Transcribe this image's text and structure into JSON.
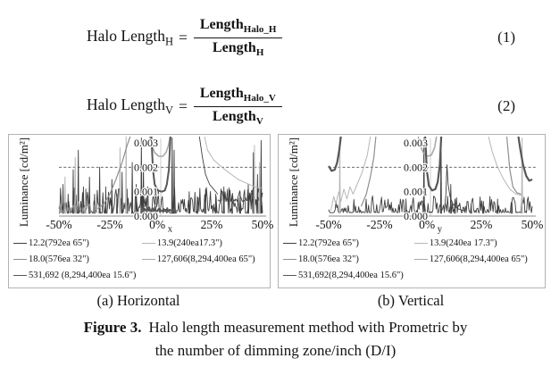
{
  "equations": [
    {
      "lhs": "Halo Length",
      "lhs_sub": "H",
      "equals": "=",
      "num": "Length",
      "num_sub": "Halo_H",
      "den": "Length",
      "den_sub": "H",
      "number": "(1)"
    },
    {
      "lhs": "Halo Length",
      "lhs_sub": "V",
      "equals": "=",
      "num": "Length",
      "num_sub": "Halo_V",
      "den": "Length",
      "den_sub": "V",
      "number": "(2)"
    }
  ],
  "figure_caption": {
    "label": "Figure 3.",
    "line1": "Halo length measurement method with Prometric by",
    "line2": "the number of dimming zone/inch (D/I)"
  },
  "chart_data": [
    {
      "type": "line",
      "title": "(a) Horizontal",
      "ylabel": "Luminance [cd/m²]",
      "axis_letter": "x",
      "xlim": [
        -50,
        50
      ],
      "ylim": [
        0,
        0.003
      ],
      "x_ticks": [
        "-50%",
        "-25%",
        "0%",
        "25%",
        "50%"
      ],
      "x_tick_values": [
        -50,
        -25,
        0,
        25,
        50
      ],
      "y_ticks": [
        "0.000",
        "0.001",
        "0.002",
        "0.003"
      ],
      "y_tick_values": [
        0,
        0.001,
        0.002,
        0.003
      ],
      "dashed_line_y": 0.002,
      "legend_position": "bottom",
      "grid": false,
      "series": [
        {
          "name": "12.2(792ea 65\")",
          "color": "#3f3f3f",
          "width": 0.9,
          "segments": [
            {
              "type": "noise",
              "from": -50,
              "to": 50,
              "base": 0.00012,
              "amp": 0.0011,
              "seed": 7
            },
            {
              "type": "spikes",
              "base": 0.0001,
              "list": [
                [
                  -48,
                  0.0013
                ],
                [
                  -45.5,
                  0.0009
                ],
                [
                  -43,
                  0.0019
                ],
                [
                  -40.5,
                  0.0027
                ],
                [
                  -38,
                  0.0012
                ],
                [
                  -35,
                  0.0016
                ],
                [
                  -32.5,
                  0.0009
                ],
                [
                  -30,
                  0.002
                ],
                [
                  -27,
                  0.0012
                ],
                [
                  -24,
                  0.0015
                ],
                [
                  -21.5,
                  0.0009
                ],
                [
                  -19,
                  0.0018
                ],
                [
                  -16.5,
                  0.0011
                ],
                [
                  -14,
                  0.0022
                ],
                [
                  -12,
                  0.0013
                ],
                [
                  -9.5,
                  0.0032
                ],
                [
                  -8.5,
                  0.0021
                ],
                [
                  5.6,
                  0.0032
                ],
                [
                  6.6,
                  0.0027
                ],
                [
                  14,
                  0.001
                ],
                [
                  18,
                  0.0008
                ],
                [
                  22,
                  0.0011
                ],
                [
                  27,
                  0.0009
                ],
                [
                  31,
                  0.0012
                ],
                [
                  35,
                  0.0008
                ],
                [
                  39,
                  0.001
                ],
                [
                  43,
                  0.0013
                ],
                [
                  45.5,
                  0.0026
                ],
                [
                  47.5,
                  0.0017
                ],
                [
                  49.3,
                  0.0031
                ]
              ]
            },
            {
              "type": "line",
              "pts": [
                [
                  19,
                  0.0034
                ],
                [
                  20.5,
                  0.0024
                ],
                [
                  22,
                  0.0017
                ],
                [
                  24,
                  0.0013
                ],
                [
                  26,
                  0.0011
                ],
                [
                  28,
                  0.0009
                ]
              ]
            },
            {
              "type": "noise",
              "from": 28,
              "to": 50,
              "base": 0.0006,
              "amp": 0.0006,
              "seed": 21
            }
          ]
        },
        {
          "name": "13.9(240ea17.3\")",
          "color": "#b7b7b7",
          "width": 1,
          "segments": [
            {
              "type": "spikes",
              "base": 0.0001,
              "list": [
                [
                  -47,
                  0.0016
                ],
                [
                  -42,
                  0.0024
                ],
                [
                  -37,
                  0.0011
                ],
                [
                  -20,
                  0.0028
                ],
                [
                  -17,
                  0.0033
                ],
                [
                  46,
                  0.0029
                ],
                [
                  48.5,
                  0.0022
                ]
              ]
            },
            {
              "type": "line",
              "pts": [
                [
                  21.5,
                  0.0034
                ],
                [
                  23,
                  0.0027
                ],
                [
                  26,
                  0.0023
                ],
                [
                  30,
                  0.002
                ],
                [
                  34,
                  0.00175
                ],
                [
                  38,
                  0.0015
                ],
                [
                  42,
                  0.00135
                ],
                [
                  46,
                  0.0012
                ],
                [
                  50,
                  0.00115
                ]
              ]
            }
          ]
        },
        {
          "name": "18.0(576ea 32\")",
          "color": "#8f8f8f",
          "width": 1.2,
          "segments": [
            {
              "type": "noise",
              "from": -50,
              "to": -31,
              "base": 0.00015,
              "amp": 0.0005,
              "seed": 31
            },
            {
              "type": "line",
              "pts": [
                [
                  -31,
                  0.0003
                ],
                [
                  -28,
                  0.0005
                ],
                [
                  -25,
                  0.0009
                ],
                [
                  -22,
                  0.0015
                ],
                [
                  -19,
                  0.0022
                ],
                [
                  -16.5,
                  0.0029
                ],
                [
                  -15,
                  0.0034
                ]
              ]
            }
          ]
        },
        {
          "name": "127,606(8,294,400ea 65\")",
          "color": "#a9a9a9",
          "width": 1.6,
          "segments": [
            {
              "type": "line",
              "pts": [
                [
                  -5.4,
                  0.0034
                ],
                [
                  -4.4,
                  0.0029
                ],
                [
                  -3,
                  0.0026
                ],
                [
                  -1,
                  0.00245
                ],
                [
                  1,
                  0.00245
                ],
                [
                  2.6,
                  0.0026
                ],
                [
                  3.8,
                  0.0029
                ],
                [
                  4.6,
                  0.0034
                ]
              ]
            }
          ]
        },
        {
          "name": "531,692 (8,294,400ea 15.6\")",
          "color": "#575757",
          "width": 2,
          "segments": [
            {
              "type": "noise",
              "from": -8,
              "to": 8,
              "base": 0.0002,
              "amp": 0.0002,
              "seed": 41
            },
            {
              "type": "line",
              "pts": [
                [
                  -4.6,
                  0.0034
                ],
                [
                  -3.8,
                  0.0019
                ],
                [
                  -3,
                  0.0013
                ],
                [
                  -1.5,
                  0.00105
                ],
                [
                  0.5,
                  0.001
                ],
                [
                  2,
                  0.00105
                ],
                [
                  3,
                  0.0013
                ],
                [
                  4,
                  0.0019
                ],
                [
                  4.8,
                  0.0034
                ]
              ]
            }
          ]
        }
      ]
    },
    {
      "type": "line",
      "title": "(b) Vertical",
      "ylabel": "Luminance [cd/m²]",
      "axis_letter": "y",
      "xlim": [
        -50,
        50
      ],
      "ylim": [
        0,
        0.003
      ],
      "x_ticks": [
        "-50%",
        "-25%",
        "0%",
        "25%",
        "50%"
      ],
      "x_tick_values": [
        -50,
        -25,
        0,
        25,
        50
      ],
      "y_ticks": [
        "0.000",
        "0.001",
        "0.002",
        "0.003"
      ],
      "y_tick_values": [
        0,
        0.001,
        0.002,
        0.003
      ],
      "dashed_line_y": 0.002,
      "legend_position": "bottom",
      "grid": false,
      "series": [
        {
          "name": "12.2(792ea 65\")",
          "color": "#3f3f3f",
          "width": 0.9,
          "segments": [
            {
              "type": "noise",
              "from": -50,
              "to": 50,
              "base": 0.00014,
              "amp": 0.0007,
              "seed": 13
            },
            {
              "type": "spikes",
              "base": 0.0001,
              "list": [
                [
                  -12,
                  0.0007
                ],
                [
                  -3.2,
                  0.0032
                ],
                [
                  5.2,
                  0.0032
                ],
                [
                  10,
                  0.0013
                ],
                [
                  12,
                  0.0007
                ],
                [
                  20,
                  0.0005
                ],
                [
                  26,
                  0.0006
                ],
                [
                  33,
                  0.0007
                ],
                [
                  40,
                  0.0006
                ]
              ]
            },
            {
              "type": "line",
              "pts": [
                [
                  6.8,
                  0.0002
                ],
                [
                  7.6,
                  0.0009
                ],
                [
                  8.1,
                  0.0021
                ],
                [
                  8.7,
                  0.0013
                ],
                [
                  9.6,
                  0.0008
                ],
                [
                  11,
                  0.0005
                ],
                [
                  13.5,
                  0.0003
                ],
                [
                  17,
                  0.0002
                ]
              ]
            }
          ]
        },
        {
          "name": "13.9(240ea 17.3\")",
          "color": "#b7b7b7",
          "width": 1,
          "segments": [
            {
              "type": "line",
              "pts": [
                [
                  -49,
                  0.0002
                ],
                [
                  -47.5,
                  0.0008
                ],
                [
                  -46.5,
                  0.0005
                ],
                [
                  -45,
                  0.001
                ],
                [
                  -44,
                  0.0006
                ],
                [
                  -42.5,
                  0.0011
                ],
                [
                  -41,
                  0.0007
                ],
                [
                  -39.5,
                  0.0012
                ],
                [
                  -38,
                  0.0009
                ],
                [
                  -36,
                  0.0013
                ],
                [
                  -33.5,
                  0.0018
                ],
                [
                  -31,
                  0.0025
                ],
                [
                  -29.5,
                  0.0034
                ]
              ]
            },
            {
              "type": "spikes",
              "base": 0.0001,
              "list": [
                [
                  -44.5,
                  0.0032
                ],
                [
                  45,
                  0.0032
                ]
              ]
            },
            {
              "type": "line",
              "pts": [
                [
                  28.5,
                  0.0034
                ],
                [
                  30.5,
                  0.0026
                ],
                [
                  33,
                  0.002
                ],
                [
                  36,
                  0.0015
                ],
                [
                  39,
                  0.0011
                ],
                [
                  42,
                  0.0009
                ],
                [
                  44.5,
                  0.00085
                ]
              ]
            }
          ]
        },
        {
          "name": "18.0(576ea 32\")",
          "color": "#8f8f8f",
          "width": 1.2,
          "segments": [
            {
              "type": "line",
              "pts": [
                [
                  -34,
                  0.0004
                ],
                [
                  -31.5,
                  0.0009
                ],
                [
                  -29.5,
                  0.0016
                ],
                [
                  -27.8,
                  0.0024
                ],
                [
                  -26.8,
                  0.0034
                ]
              ]
            },
            {
              "type": "line",
              "pts": [
                [
                  37.5,
                  0.0034
                ],
                [
                  39,
                  0.0019
                ],
                [
                  40.5,
                  0.0012
                ],
                [
                  42.5,
                  0.00095
                ],
                [
                  44.5,
                  0.0009
                ]
              ]
            }
          ]
        },
        {
          "name": "127,606(8,294,400ea 65\")",
          "color": "#a9a9a9",
          "width": 1.6,
          "segments": [
            {
              "type": "line",
              "pts": [
                [
                  -6,
                  0.0034
                ],
                [
                  -5,
                  0.0029
                ],
                [
                  -3.5,
                  0.0026
                ],
                [
                  -1.5,
                  0.00245
                ],
                [
                  0.5,
                  0.0025
                ],
                [
                  2,
                  0.0028
                ],
                [
                  3,
                  0.0034
                ]
              ]
            }
          ]
        },
        {
          "name": "531,692(8,294,400ea 15.6\")",
          "color": "#575757",
          "width": 2.2,
          "segments": [
            {
              "type": "line",
              "pts": [
                [
                  -50,
                  0.00205
                ],
                [
                  -48.5,
                  0.00185
                ],
                [
                  -47,
                  0.0019
                ],
                [
                  -45.8,
                  0.0022
                ],
                [
                  -44.8,
                  0.0027
                ],
                [
                  -44,
                  0.0034
                ]
              ]
            },
            {
              "type": "line",
              "pts": [
                [
                  -2.6,
                  0.0034
                ],
                [
                  -1.8,
                  0.0019
                ],
                [
                  -0.8,
                  0.00125
                ],
                [
                  0.8,
                  0.00105
                ],
                [
                  2.4,
                  0.0011
                ],
                [
                  3.6,
                  0.0014
                ],
                [
                  4.6,
                  0.0021
                ],
                [
                  5.3,
                  0.0034
                ]
              ]
            },
            {
              "type": "line",
              "pts": [
                [
                  43.2,
                  0.0034
                ],
                [
                  44.2,
                  0.0027
                ],
                [
                  45.5,
                  0.0021
                ],
                [
                  47,
                  0.00165
                ],
                [
                  48.5,
                  0.00145
                ],
                [
                  50,
                  0.0015
                ]
              ]
            }
          ]
        }
      ]
    }
  ]
}
